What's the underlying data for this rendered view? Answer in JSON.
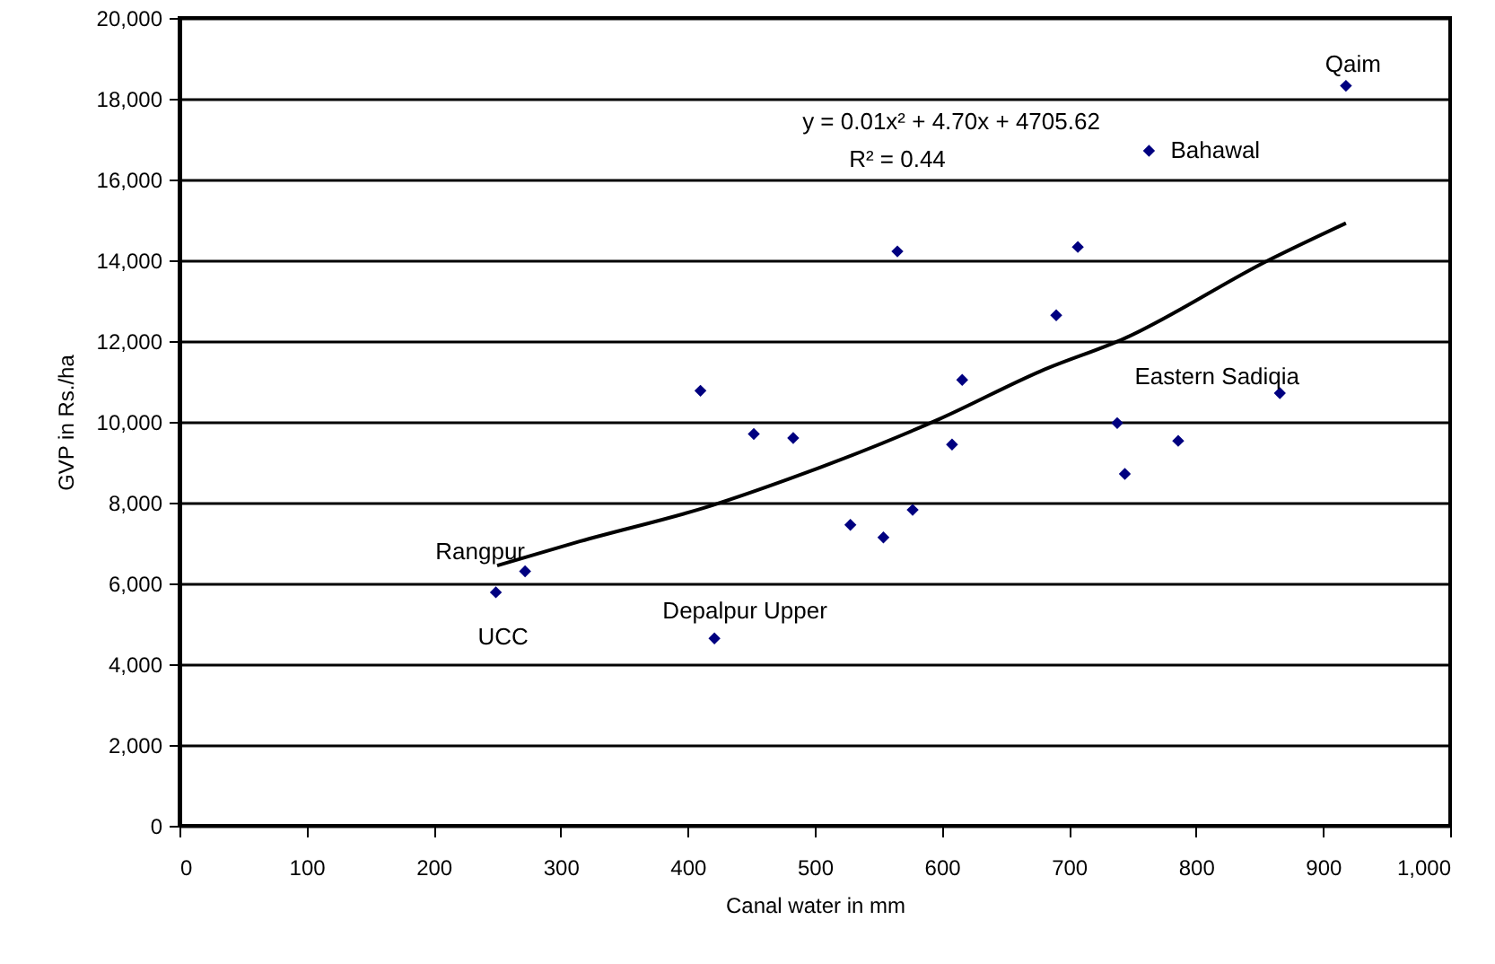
{
  "chart_data": {
    "type": "scatter",
    "xlabel": "Canal water in mm",
    "ylabel": "GVP in Rs./ha",
    "xlim": [
      0,
      1000
    ],
    "xticks": [
      0,
      100,
      200,
      300,
      400,
      500,
      600,
      700,
      800,
      900,
      {
        "value": 1000,
        "label": "1,000"
      }
    ],
    "ylim": [
      0,
      20000
    ],
    "yticks": [
      0,
      {
        "value": 2000,
        "label": "2,000"
      },
      {
        "value": 4000,
        "label": "4,000"
      },
      {
        "value": 6000,
        "label": "6,000"
      },
      {
        "value": 8000,
        "label": "8,000"
      },
      {
        "value": 10000,
        "label": "10,000"
      },
      {
        "value": 12000,
        "label": "12,000"
      },
      {
        "value": 14000,
        "label": "14,000"
      },
      {
        "value": 16000,
        "label": "16,000"
      },
      {
        "value": 18000,
        "label": "18,000"
      },
      {
        "value": 20000,
        "label": "20,000"
      }
    ],
    "grid": "y",
    "series": [
      {
        "color": "#000080",
        "marker": "diamond",
        "x": [
          249,
          272,
          410,
          452,
          483,
          421,
          528,
          554,
          565,
          577,
          608,
          616,
          690,
          707,
          738,
          744,
          763,
          786,
          866,
          918
        ],
        "values": [
          5780,
          6300,
          10770,
          9700,
          9600,
          4640,
          7450,
          7140,
          14220,
          7820,
          9440,
          11040,
          12640,
          14330,
          9970,
          8710,
          16710,
          9530,
          10710,
          18320
        ]
      },
      {
        "type": "line",
        "color": "#000000",
        "x": [
          250,
          315,
          419,
          480,
          598,
          678,
          744,
          857,
          918
        ],
        "values": [
          6440,
          7040,
          7930,
          8590,
          10070,
          11260,
          12070,
          14000,
          14920
        ]
      }
    ],
    "annotations": [
      {
        "text": "Qaim",
        "x": 918,
        "y": 18320
      },
      {
        "text": "Bahawal",
        "x": 763,
        "y": 16710
      },
      {
        "text": "Eastern Sadiqia",
        "x": 866,
        "y": 10710
      },
      {
        "text": "Rangpur",
        "x": 272,
        "y": 6300
      },
      {
        "text": "UCC",
        "x": 249,
        "y": 5780
      },
      {
        "text": "Depalpur Upper",
        "x": 421,
        "y": 4640
      },
      "y = 0.01x² + 4.70x + 4705.62",
      "R² = 0.44"
    ]
  }
}
